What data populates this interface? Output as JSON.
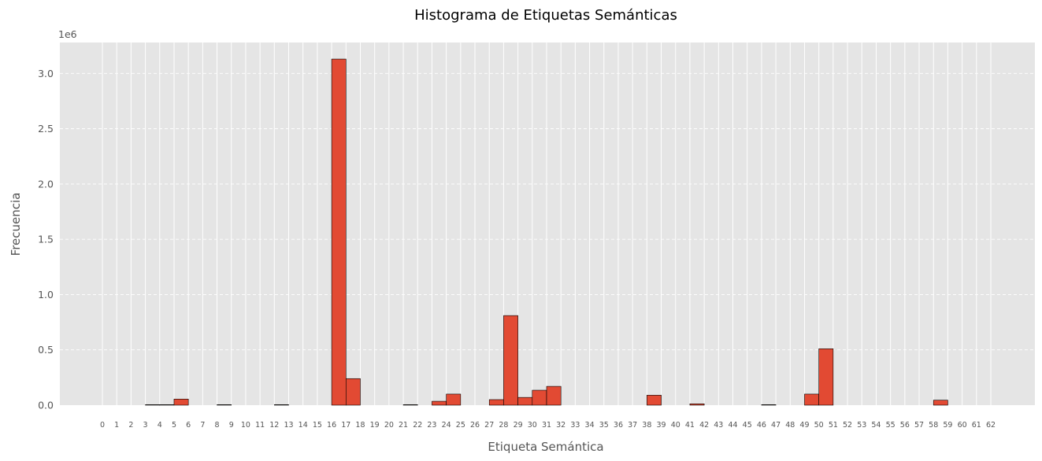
{
  "chart_data": {
    "type": "bar",
    "title": "Histograma de Etiquetas Semánticas",
    "xlabel": "Etiqueta Semántica",
    "ylabel": "Frecuencia",
    "y_multiplier": "1e6",
    "ylim": [
      0,
      3.28
    ],
    "y_ticks": [
      0.0,
      0.5,
      1.0,
      1.5,
      2.0,
      2.5,
      3.0
    ],
    "y_tick_labels": [
      "0.0",
      "0.5",
      "1.0",
      "1.5",
      "2.0",
      "2.5",
      "3.0"
    ],
    "x_ticks": [
      "0",
      "1",
      "2",
      "3",
      "4",
      "5",
      "6",
      "7",
      "8",
      "9",
      "10",
      "11",
      "12",
      "13",
      "14",
      "15",
      "16",
      "17",
      "18",
      "19",
      "20",
      "21",
      "22",
      "23",
      "24",
      "25",
      "26",
      "27",
      "28",
      "29",
      "30",
      "31",
      "32",
      "33",
      "34",
      "35",
      "36",
      "37",
      "38",
      "39",
      "40",
      "41",
      "42",
      "43",
      "44",
      "45",
      "46",
      "47",
      "48",
      "49",
      "50",
      "51",
      "52",
      "53",
      "54",
      "55",
      "56",
      "57",
      "58",
      "59",
      "60",
      "61",
      "62"
    ],
    "bin_range": [
      0,
      62
    ],
    "bins": 62,
    "values": [
      0,
      0,
      0,
      0.004,
      0.004,
      0.055,
      0,
      0,
      0.004,
      0,
      0,
      0,
      0.004,
      0,
      0,
      0,
      3.13,
      0.24,
      0,
      0,
      0,
      0.004,
      0,
      0.035,
      0.1,
      0,
      0,
      0.05,
      0.81,
      0.07,
      0.135,
      0.17,
      0,
      0,
      0,
      0,
      0,
      0,
      0.09,
      0,
      0,
      0.012,
      0,
      0,
      0,
      0,
      0.004,
      0,
      0,
      0.1,
      0.51,
      0,
      0,
      0,
      0,
      0,
      0,
      0,
      0.045,
      0,
      0,
      0
    ],
    "bar_color": "#E24A33",
    "edge_color": "#000000",
    "background_color": "#E5E5E5",
    "grid": true
  }
}
